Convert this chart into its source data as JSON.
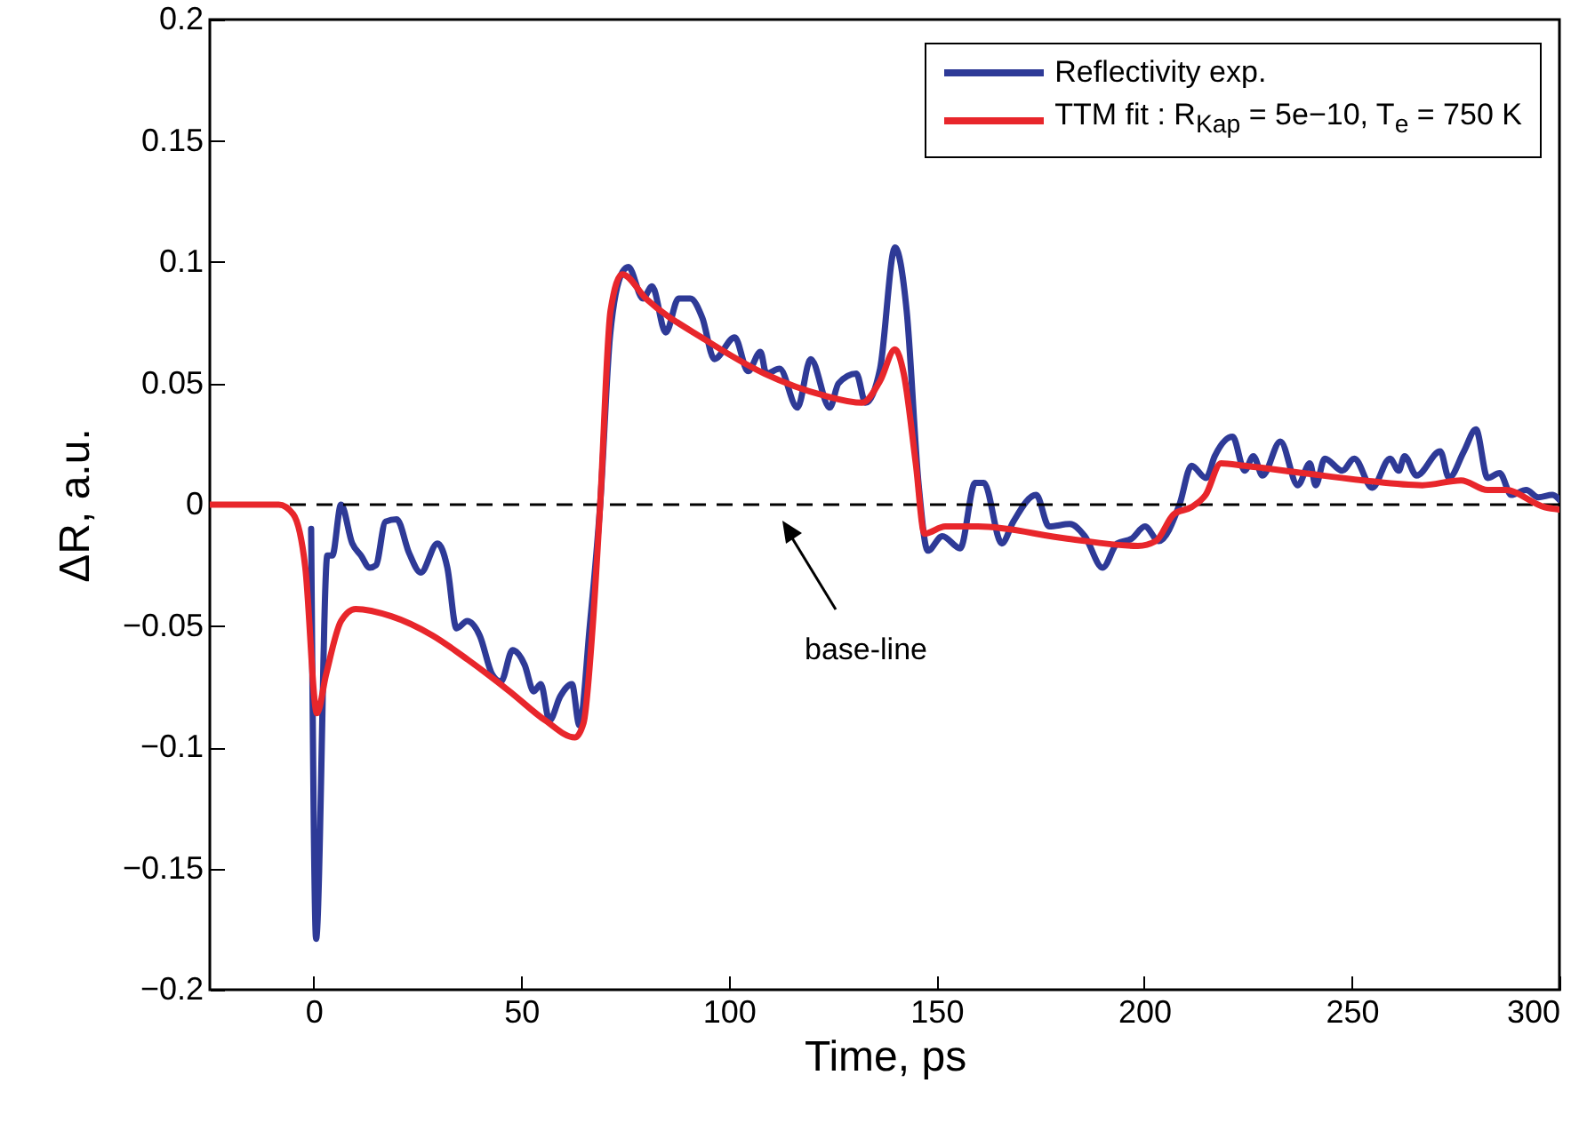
{
  "chart_data": {
    "type": "line",
    "xlabel": "Time, ps",
    "ylabel": "ΔR, a.u.",
    "xlim": [
      -25,
      300
    ],
    "xticks": [
      0,
      50,
      100,
      150,
      200,
      250,
      300
    ],
    "ylim": [
      -0.2,
      0.2
    ],
    "yticks": [
      {
        "value": -0.2,
        "label": "−0.2"
      },
      {
        "value": -0.15,
        "label": "−0.15"
      },
      {
        "value": -0.1,
        "label": "−0.1"
      },
      {
        "value": -0.05,
        "label": "−0.05"
      },
      0,
      0.05,
      0.1,
      0.15,
      0.2
    ],
    "grid": false,
    "legend": "top right",
    "line_style": "solid",
    "marker": "none",
    "series": [
      {
        "name": "Reflectivity exp.",
        "color": "#2e3a97",
        "x": [
          -0.6,
          0.6,
          3.3,
          4.5,
          6.6,
          9.3,
          11.4,
          13.5,
          15,
          17.3,
          20,
          23,
          25.8,
          29.8,
          32.2,
          34.4,
          37,
          40,
          43,
          45.1,
          47.9,
          50.8,
          53,
          54.7,
          56.8,
          59.4,
          62.2,
          64,
          66.5,
          69,
          71.4,
          74.4,
          75.8,
          79.3,
          81.5,
          84.8,
          87.9,
          90.7,
          93.6,
          96.5,
          101.4,
          104.6,
          107.6,
          109,
          112.2,
          116.5,
          119.7,
          124.3,
          126.4,
          130.7,
          132.9,
          136.4,
          140,
          142.8,
          145.7,
          147.9,
          151.4,
          155.7,
          159.3,
          161.4,
          165.7,
          168.5,
          174,
          177.1,
          182.1,
          185.7,
          190,
          193.5,
          197,
          200.2,
          203.5,
          208.5,
          211.4,
          214.9,
          217,
          221.3,
          224.2,
          226.3,
          228.5,
          232.8,
          237,
          239.9,
          241.3,
          243.5,
          247.7,
          250.6,
          254.9,
          259.2,
          261.3,
          262.7,
          265.6,
          271.3,
          273.4,
          277,
          279.9,
          282.7,
          285.6,
          288.4,
          292,
          294.9,
          298.3,
          300
        ],
        "values": [
          -0.01,
          -0.179,
          -0.021,
          -0.021,
          0.0,
          -0.016,
          -0.021,
          -0.026,
          -0.025,
          -0.007,
          -0.006,
          -0.02,
          -0.028,
          -0.016,
          -0.026,
          -0.051,
          -0.048,
          -0.054,
          -0.07,
          -0.073,
          -0.06,
          -0.066,
          -0.077,
          -0.074,
          -0.089,
          -0.079,
          -0.074,
          -0.091,
          -0.05,
          0.0,
          0.07,
          0.096,
          0.098,
          0.085,
          0.09,
          0.071,
          0.085,
          0.085,
          0.077,
          0.06,
          0.069,
          0.055,
          0.063,
          0.054,
          0.056,
          0.04,
          0.06,
          0.04,
          0.05,
          0.054,
          0.042,
          0.056,
          0.106,
          0.08,
          0.008,
          -0.019,
          -0.013,
          -0.018,
          0.009,
          0.009,
          -0.016,
          -0.007,
          0.004,
          -0.009,
          -0.008,
          -0.013,
          -0.026,
          -0.016,
          -0.014,
          -0.009,
          -0.015,
          0.0,
          0.016,
          0.011,
          0.02,
          0.028,
          0.014,
          0.02,
          0.012,
          0.026,
          0.008,
          0.017,
          0.008,
          0.019,
          0.014,
          0.019,
          0.007,
          0.019,
          0.014,
          0.02,
          0.012,
          0.022,
          0.011,
          0.022,
          0.031,
          0.011,
          0.013,
          0.004,
          0.006,
          0.003,
          0.004,
          0.002
        ]
      },
      {
        "name": "TTM fit : R$_{Kap}$ = 5e−10, T$_{e}$ = 750 K",
        "color": "#e8262b",
        "x": [
          -25,
          -8.4,
          -4.9,
          -2,
          0.8,
          3,
          6.6,
          10.1,
          18.7,
          28.7,
          37.2,
          47.2,
          55.8,
          62.9,
          65,
          67.2,
          69,
          71.5,
          74.3,
          80,
          94.3,
          108.6,
          122.9,
          132.1,
          136.4,
          140,
          142.1,
          145,
          147.1,
          152.1,
          160,
          181.4,
          198.5,
          202.8,
          207.1,
          211.4,
          214.8,
          218.5,
          224.2,
          238.3,
          252.7,
          267,
          276.3,
          282.7,
          287,
          296.4,
          300
        ],
        "values": [
          0,
          0,
          -0.004,
          -0.026,
          -0.086,
          -0.07,
          -0.048,
          -0.043,
          -0.046,
          -0.054,
          -0.064,
          -0.077,
          -0.089,
          -0.096,
          -0.09,
          -0.05,
          0.0,
          0.08,
          0.095,
          0.085,
          0.068,
          0.054,
          0.045,
          0.042,
          0.051,
          0.064,
          0.054,
          0.017,
          -0.012,
          -0.009,
          -0.009,
          -0.014,
          -0.017,
          -0.015,
          -0.004,
          -0.001,
          0.004,
          0.017,
          0.016,
          0.013,
          0.01,
          0.008,
          0.01,
          0.006,
          0.006,
          -0.001,
          -0.002
        ]
      }
    ],
    "ref_lines": [
      {
        "axis": "y",
        "value": 0,
        "color": "#000000",
        "line_style": "dashed"
      }
    ],
    "annotations": [
      "base-line"
    ]
  }
}
